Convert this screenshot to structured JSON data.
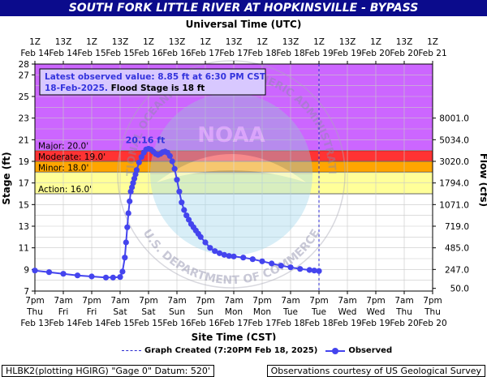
{
  "title": "SOUTH FORK LITTLE RIVER AT HOPKINSVILLE - BYPASS",
  "chart_data": {
    "type": "line",
    "top_axis_label": "Universal Time (UTC)",
    "top_ticks": [
      {
        "t": "1Z",
        "d": "Feb 14"
      },
      {
        "t": "13Z",
        "d": "Feb 14"
      },
      {
        "t": "1Z",
        "d": "Feb 15"
      },
      {
        "t": "13Z",
        "d": "Feb 15"
      },
      {
        "t": "1Z",
        "d": "Feb 16"
      },
      {
        "t": "13Z",
        "d": "Feb 16"
      },
      {
        "t": "1Z",
        "d": "Feb 17"
      },
      {
        "t": "13Z",
        "d": "Feb 17"
      },
      {
        "t": "1Z",
        "d": "Feb 18"
      },
      {
        "t": "13Z",
        "d": "Feb 18"
      },
      {
        "t": "1Z",
        "d": "Feb 19"
      },
      {
        "t": "13Z",
        "d": "Feb 19"
      },
      {
        "t": "1Z",
        "d": "Feb 20"
      },
      {
        "t": "13Z",
        "d": "Feb 20"
      },
      {
        "t": "1Z",
        "d": "Feb 21"
      }
    ],
    "bottom_axis_label": "Site Time (CST)",
    "bottom_ticks": [
      {
        "t": "7pm",
        "w": "Thu",
        "d": "Feb 13"
      },
      {
        "t": "7am",
        "w": "Fri",
        "d": "Feb 14"
      },
      {
        "t": "7pm",
        "w": "Fri",
        "d": "Feb 14"
      },
      {
        "t": "7am",
        "w": "Sat",
        "d": "Feb 15"
      },
      {
        "t": "7pm",
        "w": "Sat",
        "d": "Feb 15"
      },
      {
        "t": "7am",
        "w": "Sun",
        "d": "Feb 16"
      },
      {
        "t": "7pm",
        "w": "Sun",
        "d": "Feb 16"
      },
      {
        "t": "7am",
        "w": "Mon",
        "d": "Feb 17"
      },
      {
        "t": "7pm",
        "w": "Mon",
        "d": "Feb 17"
      },
      {
        "t": "7am",
        "w": "Tue",
        "d": "Feb 18"
      },
      {
        "t": "7pm",
        "w": "Tue",
        "d": "Feb 18"
      },
      {
        "t": "7am",
        "w": "Wed",
        "d": "Feb 19"
      },
      {
        "t": "7pm",
        "w": "Wed",
        "d": "Feb 19"
      },
      {
        "t": "7am",
        "w": "Thu",
        "d": "Feb 20"
      },
      {
        "t": "7pm",
        "w": "Thu",
        "d": "Feb 20"
      }
    ],
    "ylabel": "Stage (ft)",
    "ylim": [
      7,
      28
    ],
    "yticks": [
      9,
      11,
      13,
      15,
      17,
      19,
      21,
      23,
      25,
      27
    ],
    "y_extra_ticks": [
      7,
      28
    ],
    "y2label": "Flow (cfs)",
    "y2_ticks": [
      {
        "stage": 7.25,
        "label": "50.0"
      },
      {
        "stage": 9.0,
        "label": "247.0"
      },
      {
        "stage": 11.0,
        "label": "485.0"
      },
      {
        "stage": 13.0,
        "label": "719.0"
      },
      {
        "stage": 15.0,
        "label": "1071.0"
      },
      {
        "stage": 17.0,
        "label": "1794.0"
      },
      {
        "stage": 19.0,
        "label": "3020.0"
      },
      {
        "stage": 21.0,
        "label": "5034.0"
      },
      {
        "stage": 23.0,
        "label": "8001.0"
      }
    ],
    "flood_bands": [
      {
        "name": "Action",
        "from": 16,
        "to": 18,
        "color": "#ffff99"
      },
      {
        "name": "Minor",
        "from": 18,
        "to": 19,
        "color": "#ffa500"
      },
      {
        "name": "Moderate",
        "from": 19,
        "to": 20,
        "color": "#ff3333"
      },
      {
        "name": "Major",
        "from": 20,
        "to": 28,
        "color": "#cc66ff"
      }
    ],
    "stage_labels": [
      "Major: 20.0'",
      "Moderate: 19.0'",
      "Minor: 18.0'",
      "Action: 16.0'"
    ],
    "x_unit": "hours after 7pm Thu Feb 13 (CST)",
    "xlim": [
      0,
      168
    ],
    "graph_created_hour": 120,
    "series": [
      {
        "name": "Observed",
        "color": "#4444ee",
        "x": [
          0,
          6,
          12,
          18,
          24,
          30,
          33,
          36,
          37,
          38,
          38.5,
          39,
          39.5,
          40,
          40.5,
          41,
          41.5,
          42,
          42.5,
          43,
          44,
          45,
          46,
          47,
          48,
          49,
          50,
          51,
          52,
          53,
          54,
          55,
          56,
          57,
          58,
          59,
          60,
          61,
          62,
          63,
          64,
          65,
          66,
          67,
          68,
          69,
          70,
          72,
          74,
          76,
          78,
          80,
          82,
          84,
          88,
          92,
          96,
          100,
          104,
          108,
          112,
          116,
          118,
          120
        ],
        "values": [
          8.9,
          8.75,
          8.6,
          8.45,
          8.35,
          8.25,
          8.25,
          8.3,
          8.8,
          10.1,
          11.5,
          12.9,
          14.2,
          15.3,
          16.2,
          16.6,
          17.0,
          17.4,
          17.8,
          18.2,
          18.9,
          19.4,
          19.8,
          20.1,
          20.16,
          20.1,
          19.9,
          19.7,
          19.6,
          19.7,
          19.85,
          19.9,
          19.8,
          19.5,
          19.0,
          18.3,
          17.3,
          16.2,
          15.2,
          14.5,
          14.0,
          13.6,
          13.2,
          12.9,
          12.6,
          12.3,
          12.0,
          11.5,
          11.0,
          10.7,
          10.5,
          10.35,
          10.25,
          10.2,
          10.1,
          9.95,
          9.75,
          9.55,
          9.35,
          9.2,
          9.05,
          8.95,
          8.9,
          8.85
        ]
      }
    ],
    "peak_label": "20.16 ft",
    "peak_x": 48,
    "peak_y": 20.16
  },
  "annotation": {
    "line1": "Latest observed value: 8.85 ft at 6:30 PM CST",
    "line2_date": "18-Feb-2025.",
    "line2_rest": " Flood Stage is 18 ft"
  },
  "legend": {
    "graph_created": "Graph Created (7:20PM Feb 18, 2025)",
    "observed": "Observed"
  },
  "footer": {
    "left": "HLBK2(plotting HGIRG) \"Gage 0\" Datum: 520'",
    "right": "Observations courtesy of US Geological Survey"
  },
  "watermark": {
    "ring_text_top": "NATIONAL OCEANIC AND ATMOSPHERIC ADMINISTRATION",
    "ring_text_bottom": "U.S. DEPARTMENT OF COMMERCE",
    "center": "NOAA"
  }
}
